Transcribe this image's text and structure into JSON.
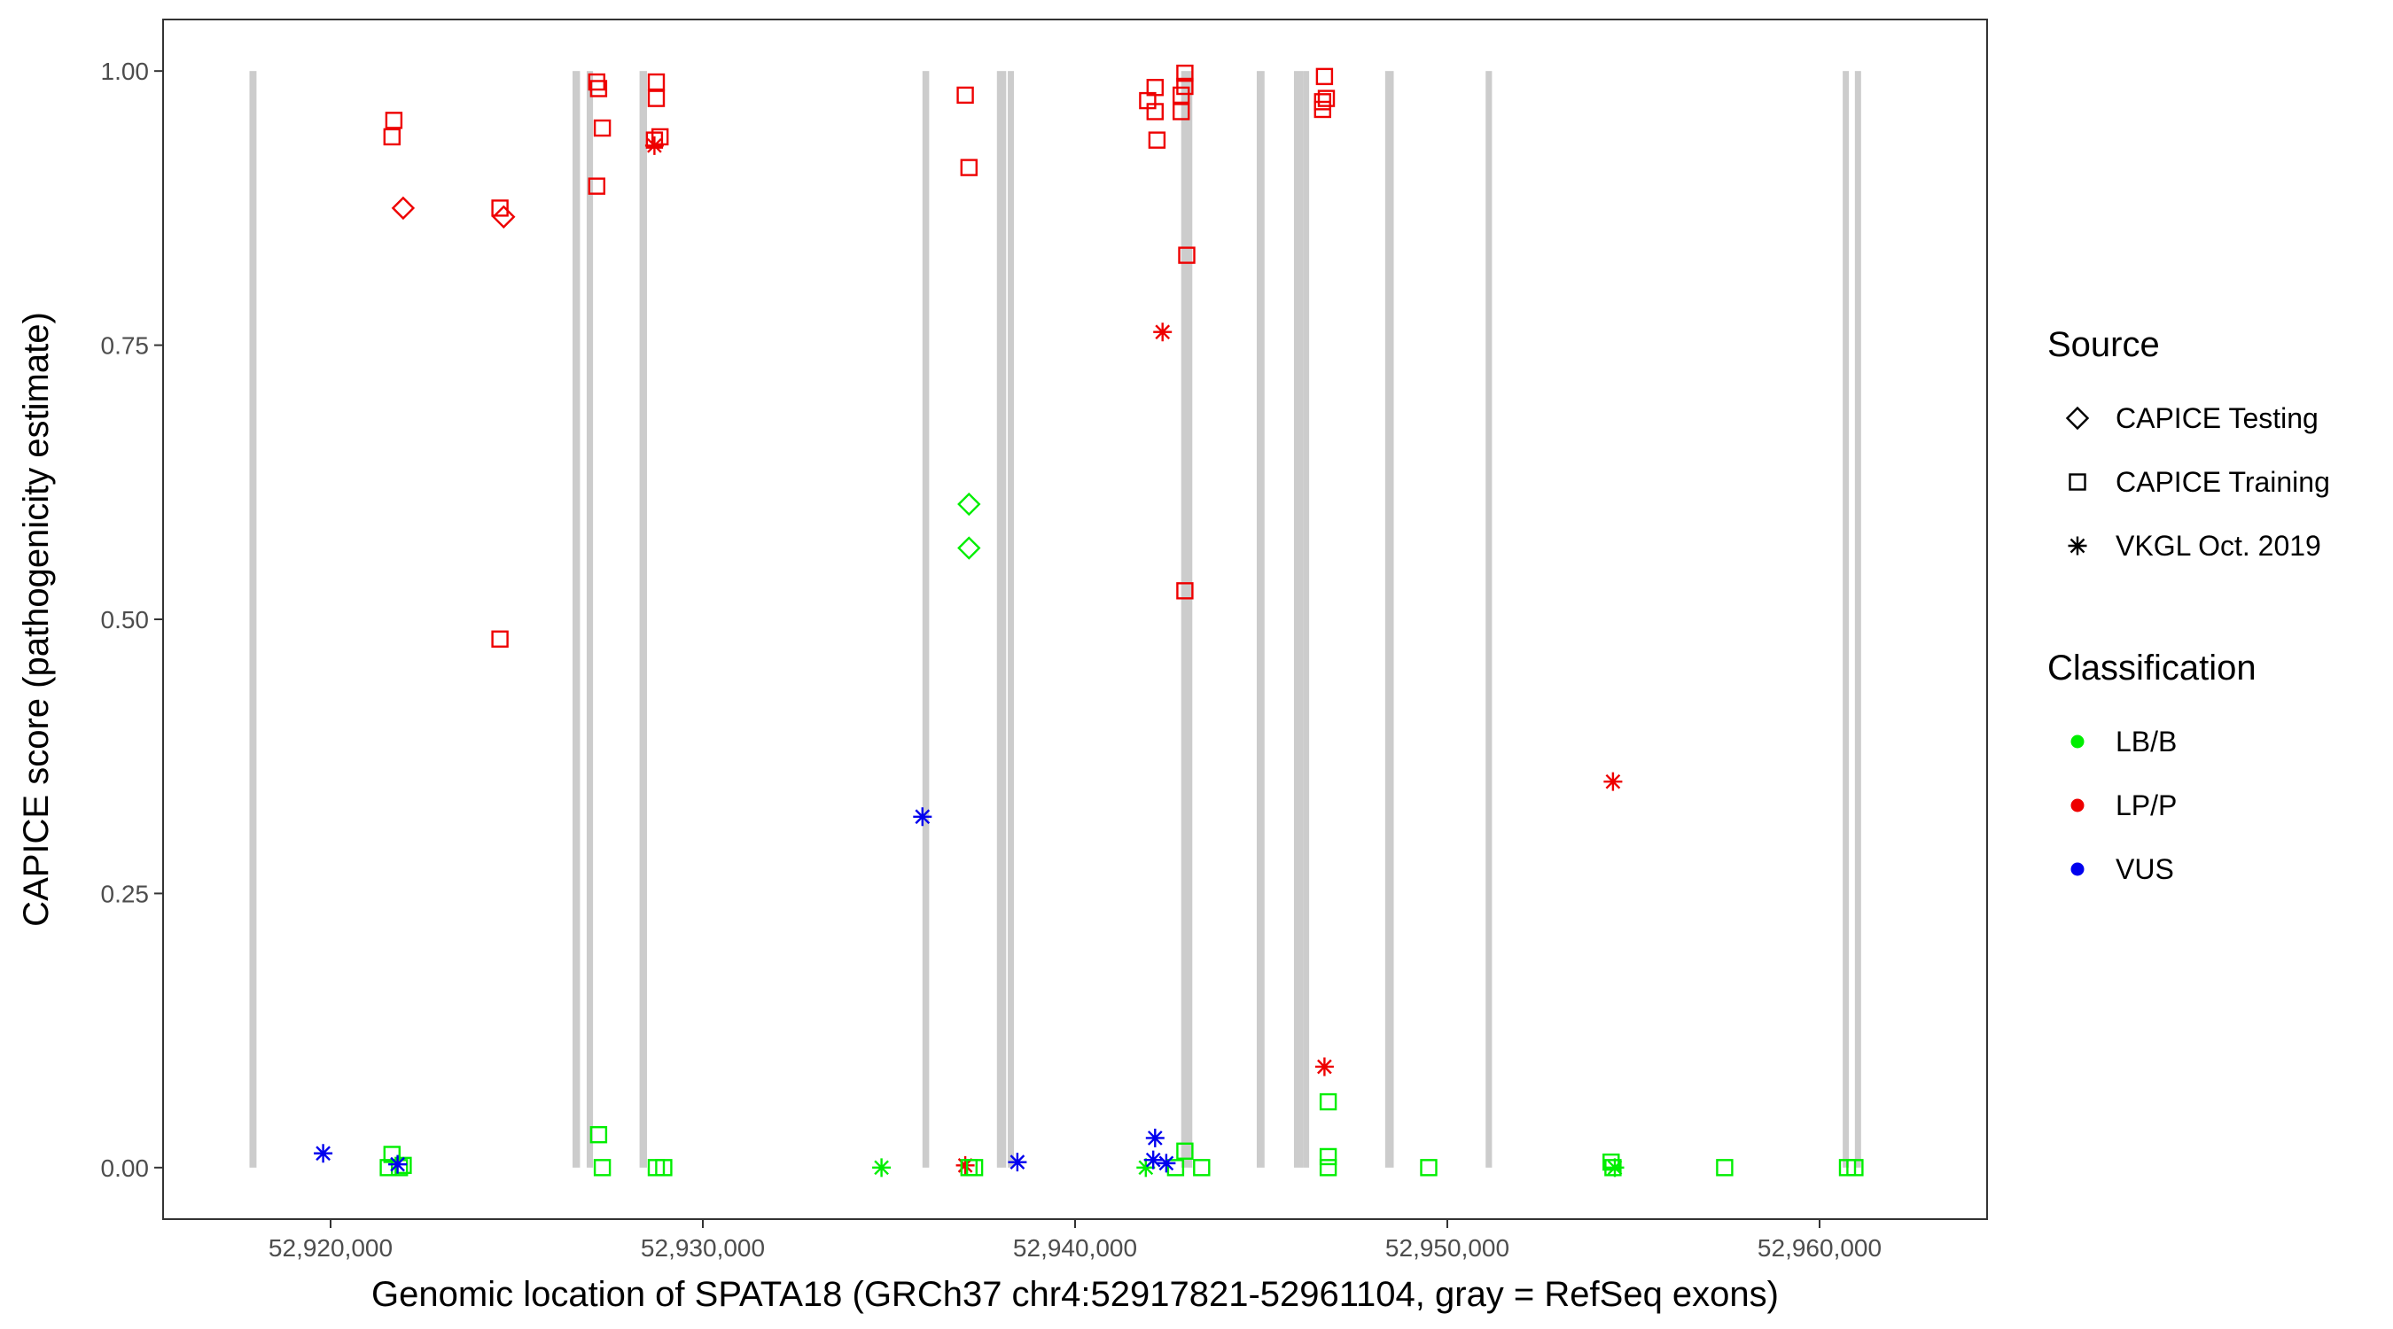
{
  "chart_data": {
    "type": "scatter",
    "title": "",
    "xlabel": "Genomic location of SPATA18 (GRCh37 chr4:52917821-52961104, gray = RefSeq exons)",
    "ylabel": "CAPICE score (pathogenicity estimate)",
    "xlim": [
      52915500,
      52964500
    ],
    "ylim": [
      -0.047,
      1.047
    ],
    "x_ticks": [
      52920000,
      52930000,
      52940000,
      52950000,
      52960000
    ],
    "x_tick_labels": [
      "52,920,000",
      "52,930,000",
      "52,940,000",
      "52,950,000",
      "52,960,000"
    ],
    "y_ticks": [
      0,
      0.25,
      0.5,
      0.75,
      1
    ],
    "y_tick_labels": [
      "0.00",
      "0.25",
      "0.50",
      "0.75",
      "1.00"
    ],
    "grid": false,
    "exons": [
      {
        "start": 52917821,
        "end": 52918010
      },
      {
        "start": 52926500,
        "end": 52926700
      },
      {
        "start": 52926880,
        "end": 52927050
      },
      {
        "start": 52928300,
        "end": 52928500
      },
      {
        "start": 52935900,
        "end": 52936080
      },
      {
        "start": 52937900,
        "end": 52938150
      },
      {
        "start": 52938200,
        "end": 52938350
      },
      {
        "start": 52942850,
        "end": 52943150
      },
      {
        "start": 52944880,
        "end": 52945090
      },
      {
        "start": 52945880,
        "end": 52946120
      },
      {
        "start": 52946170,
        "end": 52946240
      },
      {
        "start": 52948330,
        "end": 52948560
      },
      {
        "start": 52951030,
        "end": 52951200
      },
      {
        "start": 52960650,
        "end": 52960760
      },
      {
        "start": 52960960,
        "end": 52961104
      }
    ],
    "legend": [
      {
        "title": "Source",
        "entries": [
          {
            "label": "CAPICE Testing",
            "shape": "diamond"
          },
          {
            "label": "CAPICE Training",
            "shape": "square"
          },
          {
            "label": "VKGL Oct. 2019",
            "shape": "asterisk"
          }
        ]
      },
      {
        "title": "Classification",
        "entries": [
          {
            "label": "LB/B",
            "color": "#00ee00"
          },
          {
            "label": "LP/P",
            "color": "#ee0000"
          },
          {
            "label": "VUS",
            "color": "#0000ee"
          }
        ]
      }
    ],
    "legend_position": "right",
    "points": [
      {
        "x": 52921700,
        "y": 0.955,
        "source": "CAPICE Training",
        "class": "LP/P"
      },
      {
        "x": 52921650,
        "y": 0.94,
        "source": "CAPICE Training",
        "class": "LP/P"
      },
      {
        "x": 52921950,
        "y": 0.875,
        "source": "CAPICE Testing",
        "class": "LP/P"
      },
      {
        "x": 52924550,
        "y": 0.875,
        "source": "CAPICE Training",
        "class": "LP/P"
      },
      {
        "x": 52924650,
        "y": 0.867,
        "source": "CAPICE Testing",
        "class": "LP/P"
      },
      {
        "x": 52924550,
        "y": 0.482,
        "source": "CAPICE Training",
        "class": "LP/P"
      },
      {
        "x": 52927150,
        "y": 0.99,
        "source": "CAPICE Training",
        "class": "LP/P"
      },
      {
        "x": 52927200,
        "y": 0.984,
        "source": "CAPICE Training",
        "class": "LP/P"
      },
      {
        "x": 52927300,
        "y": 0.948,
        "source": "CAPICE Training",
        "class": "LP/P"
      },
      {
        "x": 52927150,
        "y": 0.895,
        "source": "CAPICE Training",
        "class": "LP/P"
      },
      {
        "x": 52928750,
        "y": 0.99,
        "source": "CAPICE Training",
        "class": "LP/P"
      },
      {
        "x": 52928750,
        "y": 0.975,
        "source": "CAPICE Training",
        "class": "LP/P"
      },
      {
        "x": 52928850,
        "y": 0.94,
        "source": "CAPICE Training",
        "class": "LP/P"
      },
      {
        "x": 52928700,
        "y": 0.937,
        "source": "CAPICE Training",
        "class": "LP/P"
      },
      {
        "x": 52928700,
        "y": 0.932,
        "source": "VKGL Oct. 2019",
        "class": "LP/P"
      },
      {
        "x": 52937050,
        "y": 0.978,
        "source": "CAPICE Training",
        "class": "LP/P"
      },
      {
        "x": 52937150,
        "y": 0.912,
        "source": "CAPICE Training",
        "class": "LP/P"
      },
      {
        "x": 52942150,
        "y": 0.985,
        "source": "CAPICE Training",
        "class": "LP/P"
      },
      {
        "x": 52941950,
        "y": 0.973,
        "source": "CAPICE Training",
        "class": "LP/P"
      },
      {
        "x": 52942150,
        "y": 0.963,
        "source": "CAPICE Training",
        "class": "LP/P"
      },
      {
        "x": 52942200,
        "y": 0.937,
        "source": "CAPICE Training",
        "class": "LP/P"
      },
      {
        "x": 52942950,
        "y": 0.998,
        "source": "CAPICE Training",
        "class": "LP/P"
      },
      {
        "x": 52942950,
        "y": 0.986,
        "source": "CAPICE Training",
        "class": "LP/P"
      },
      {
        "x": 52942850,
        "y": 0.978,
        "source": "CAPICE Training",
        "class": "LP/P"
      },
      {
        "x": 52942850,
        "y": 0.963,
        "source": "CAPICE Training",
        "class": "LP/P"
      },
      {
        "x": 52943000,
        "y": 0.832,
        "source": "CAPICE Training",
        "class": "LP/P"
      },
      {
        "x": 52942950,
        "y": 0.526,
        "source": "CAPICE Training",
        "class": "LP/P"
      },
      {
        "x": 52942350,
        "y": 0.762,
        "source": "VKGL Oct. 2019",
        "class": "LP/P"
      },
      {
        "x": 52946700,
        "y": 0.995,
        "source": "CAPICE Training",
        "class": "LP/P"
      },
      {
        "x": 52946750,
        "y": 0.975,
        "source": "CAPICE Training",
        "class": "LP/P"
      },
      {
        "x": 52946650,
        "y": 0.972,
        "source": "CAPICE Training",
        "class": "LP/P"
      },
      {
        "x": 52946650,
        "y": 0.965,
        "source": "CAPICE Training",
        "class": "LP/P"
      },
      {
        "x": 52946700,
        "y": 0.092,
        "source": "VKGL Oct. 2019",
        "class": "LP/P"
      },
      {
        "x": 52954450,
        "y": 0.352,
        "source": "VKGL Oct. 2019",
        "class": "LP/P"
      },
      {
        "x": 52937050,
        "y": 0.002,
        "source": "VKGL Oct. 2019",
        "class": "LP/P"
      },
      {
        "x": 52937150,
        "y": 0.605,
        "source": "CAPICE Testing",
        "class": "LB/B"
      },
      {
        "x": 52937150,
        "y": 0.565,
        "source": "CAPICE Testing",
        "class": "LB/B"
      },
      {
        "x": 52921650,
        "y": 0.012,
        "source": "CAPICE Training",
        "class": "LB/B"
      },
      {
        "x": 52921550,
        "y": 0.0,
        "source": "CAPICE Training",
        "class": "LB/B"
      },
      {
        "x": 52921850,
        "y": 0.0,
        "source": "CAPICE Training",
        "class": "LB/B"
      },
      {
        "x": 52921950,
        "y": 0.002,
        "source": "CAPICE Training",
        "class": "LB/B"
      },
      {
        "x": 52927200,
        "y": 0.03,
        "source": "CAPICE Training",
        "class": "LB/B"
      },
      {
        "x": 52927300,
        "y": 0.0,
        "source": "CAPICE Training",
        "class": "LB/B"
      },
      {
        "x": 52928750,
        "y": 0.0,
        "source": "CAPICE Training",
        "class": "LB/B"
      },
      {
        "x": 52928950,
        "y": 0.0,
        "source": "CAPICE Training",
        "class": "LB/B"
      },
      {
        "x": 52934800,
        "y": 0.0,
        "source": "VKGL Oct. 2019",
        "class": "LB/B"
      },
      {
        "x": 52937150,
        "y": 0.0,
        "source": "CAPICE Training",
        "class": "LB/B"
      },
      {
        "x": 52937300,
        "y": 0.0,
        "source": "CAPICE Training",
        "class": "LB/B"
      },
      {
        "x": 52941900,
        "y": 0.0,
        "source": "VKGL Oct. 2019",
        "class": "LB/B"
      },
      {
        "x": 52942700,
        "y": 0.0,
        "source": "CAPICE Training",
        "class": "LB/B"
      },
      {
        "x": 52942950,
        "y": 0.015,
        "source": "CAPICE Training",
        "class": "LB/B"
      },
      {
        "x": 52943400,
        "y": 0.0,
        "source": "CAPICE Training",
        "class": "LB/B"
      },
      {
        "x": 52946800,
        "y": 0.06,
        "source": "CAPICE Training",
        "class": "LB/B"
      },
      {
        "x": 52946800,
        "y": 0.01,
        "source": "CAPICE Training",
        "class": "LB/B"
      },
      {
        "x": 52946800,
        "y": 0.0,
        "source": "CAPICE Training",
        "class": "LB/B"
      },
      {
        "x": 52949500,
        "y": 0.0,
        "source": "CAPICE Training",
        "class": "LB/B"
      },
      {
        "x": 52954400,
        "y": 0.005,
        "source": "CAPICE Training",
        "class": "LB/B"
      },
      {
        "x": 52954450,
        "y": 0.0,
        "source": "CAPICE Training",
        "class": "LB/B"
      },
      {
        "x": 52954500,
        "y": 0.0,
        "source": "VKGL Oct. 2019",
        "class": "LB/B"
      },
      {
        "x": 52957450,
        "y": 0.0,
        "source": "CAPICE Training",
        "class": "LB/B"
      },
      {
        "x": 52960750,
        "y": 0.0,
        "source": "CAPICE Training",
        "class": "LB/B"
      },
      {
        "x": 52960950,
        "y": 0.0,
        "source": "CAPICE Training",
        "class": "LB/B"
      },
      {
        "x": 52919800,
        "y": 0.013,
        "source": "VKGL Oct. 2019",
        "class": "VUS"
      },
      {
        "x": 52921800,
        "y": 0.003,
        "source": "VKGL Oct. 2019",
        "class": "VUS"
      },
      {
        "x": 52935900,
        "y": 0.32,
        "source": "VKGL Oct. 2019",
        "class": "VUS"
      },
      {
        "x": 52938450,
        "y": 0.005,
        "source": "VKGL Oct. 2019",
        "class": "VUS"
      },
      {
        "x": 52942150,
        "y": 0.027,
        "source": "VKGL Oct. 2019",
        "class": "VUS"
      },
      {
        "x": 52942100,
        "y": 0.007,
        "source": "VKGL Oct. 2019",
        "class": "VUS"
      },
      {
        "x": 52942450,
        "y": 0.004,
        "source": "VKGL Oct. 2019",
        "class": "VUS"
      }
    ]
  }
}
